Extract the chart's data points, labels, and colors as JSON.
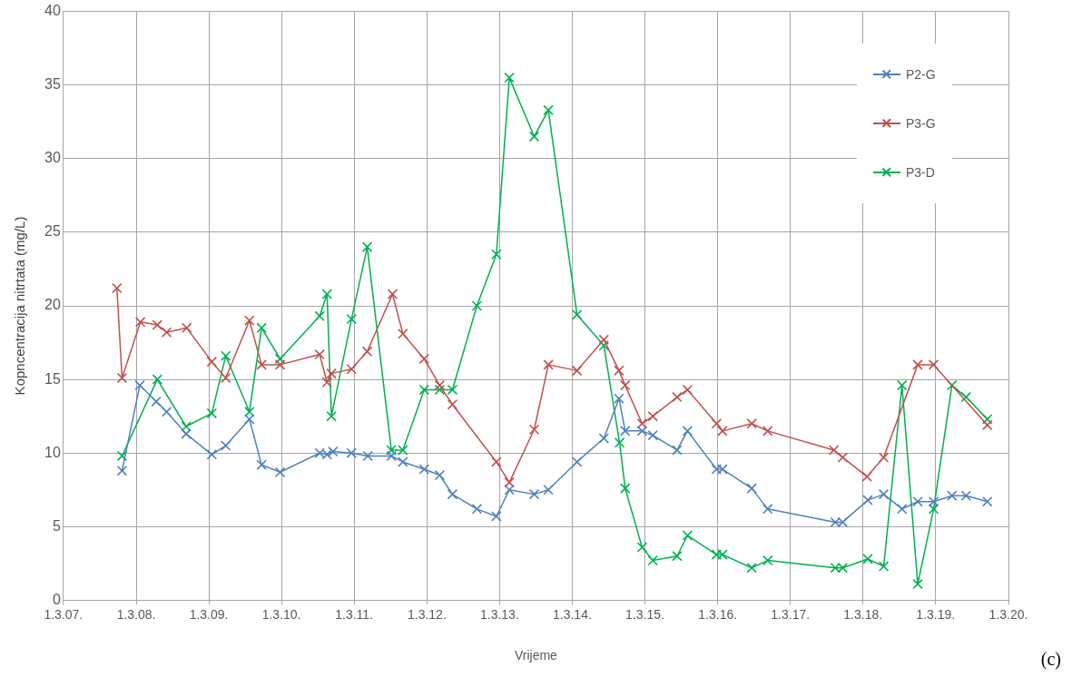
{
  "chart_data": {
    "type": "line",
    "xlabel": "Vrijeme",
    "ylabel": "Kopncentracija nitrtata (mg/L)",
    "annotations": [
      "(c)"
    ],
    "xlim": [
      "2007-03-01",
      "2020-03-01"
    ],
    "xticks": [
      {
        "value": "2007-03-01",
        "label": "1.3.07."
      },
      {
        "value": "2008-03-01",
        "label": "1.3.08."
      },
      {
        "value": "2009-03-01",
        "label": "1.3.09."
      },
      {
        "value": "2010-03-01",
        "label": "1.3.10."
      },
      {
        "value": "2011-03-01",
        "label": "1.3.11."
      },
      {
        "value": "2012-03-01",
        "label": "1.3.12."
      },
      {
        "value": "2013-03-01",
        "label": "1.3.13."
      },
      {
        "value": "2014-03-01",
        "label": "1.3.14."
      },
      {
        "value": "2015-03-01",
        "label": "1.3.15."
      },
      {
        "value": "2016-03-01",
        "label": "1.3.16."
      },
      {
        "value": "2017-03-01",
        "label": "1.3.17."
      },
      {
        "value": "2018-03-01",
        "label": "1.3.18."
      },
      {
        "value": "2019-03-01",
        "label": "1.3.19."
      },
      {
        "value": "2020-03-01",
        "label": "1.3.20."
      }
    ],
    "ylim": [
      0,
      40
    ],
    "yticks": [
      0,
      5,
      10,
      15,
      20,
      25,
      30,
      35,
      40
    ],
    "grid": true,
    "legend": "top right",
    "marker": "cross",
    "line_style": "solid",
    "series": [
      {
        "name": "P2-G",
        "color": "#4f81bd",
        "x": [
          "2007-12-21",
          "2008-03-19",
          "2008-06-10",
          "2008-08-01",
          "2008-11-07",
          "2009-03-16",
          "2009-05-25",
          "2009-09-21",
          "2009-11-21",
          "2010-02-22",
          "2010-09-09",
          "2010-10-16",
          "2010-11-15",
          "2011-02-16",
          "2011-05-09",
          "2011-09-04",
          "2011-11-01",
          "2012-02-16",
          "2012-05-04",
          "2012-07-07",
          "2012-11-07",
          "2013-02-13",
          "2013-04-19",
          "2013-08-22",
          "2013-11-01",
          "2014-03-25",
          "2014-08-07",
          "2014-10-22",
          "2014-11-22",
          "2015-02-15",
          "2015-04-10",
          "2015-08-10",
          "2015-10-01",
          "2016-02-24",
          "2016-03-25",
          "2016-08-19",
          "2016-11-07",
          "2017-10-13",
          "2017-11-19",
          "2018-03-25",
          "2018-06-13",
          "2018-09-13",
          "2018-12-01",
          "2019-02-19",
          "2019-05-22",
          "2019-08-01",
          "2019-11-16"
        ],
        "values": [
          8.8,
          14.6,
          13.5,
          12.8,
          11.3,
          9.9,
          10.5,
          12.3,
          9.2,
          8.7,
          10.0,
          9.9,
          10.1,
          10.0,
          9.8,
          9.8,
          9.4,
          8.9,
          8.5,
          7.2,
          6.2,
          5.7,
          7.5,
          7.2,
          7.5,
          9.4,
          11.0,
          13.7,
          11.5,
          11.5,
          11.2,
          10.2,
          11.5,
          8.9,
          8.9,
          7.6,
          6.2,
          5.3,
          5.3,
          6.8,
          7.2,
          6.2,
          6.7,
          6.7,
          7.1,
          7.1,
          6.7
        ]
      },
      {
        "name": "P3-G",
        "color": "#c0504d",
        "x": [
          "2007-11-25",
          "2007-12-21",
          "2008-03-22",
          "2008-06-15",
          "2008-08-01",
          "2008-11-10",
          "2009-03-16",
          "2009-05-25",
          "2009-09-21",
          "2009-11-21",
          "2010-02-22",
          "2010-09-09",
          "2010-10-16",
          "2010-11-07",
          "2011-02-16",
          "2011-05-06",
          "2011-09-10",
          "2011-11-01",
          "2012-02-16",
          "2012-05-04",
          "2012-07-07",
          "2013-02-13",
          "2013-04-19",
          "2013-08-22",
          "2013-11-01",
          "2014-03-25",
          "2014-08-07",
          "2014-10-22",
          "2014-11-22",
          "2015-02-15",
          "2015-04-10",
          "2015-08-10",
          "2015-10-01",
          "2016-02-24",
          "2016-03-25",
          "2016-08-19",
          "2016-11-07",
          "2017-10-06",
          "2017-11-19",
          "2018-03-21",
          "2018-06-13",
          "2018-12-01",
          "2019-02-19",
          "2019-11-16"
        ],
        "values": [
          21.2,
          15.1,
          18.9,
          18.7,
          18.2,
          18.5,
          16.2,
          15.1,
          19.0,
          16.0,
          16.0,
          16.7,
          14.8,
          15.4,
          15.7,
          16.9,
          20.8,
          18.1,
          16.4,
          14.6,
          13.3,
          9.4,
          8.0,
          11.6,
          16.0,
          15.6,
          17.7,
          15.6,
          14.6,
          12.0,
          12.5,
          13.8,
          14.3,
          12.0,
          11.5,
          12.0,
          11.5,
          10.2,
          9.7,
          8.4,
          9.7,
          16.0,
          16.0,
          11.9
        ]
      },
      {
        "name": "P3-D",
        "color": "#00b050",
        "x": [
          "2007-12-21",
          "2008-06-15",
          "2008-11-07",
          "2009-03-16",
          "2009-05-25",
          "2009-09-21",
          "2009-11-21",
          "2010-02-22",
          "2010-09-09",
          "2010-10-16",
          "2010-11-07",
          "2011-02-16",
          "2011-05-06",
          "2011-09-04",
          "2011-11-01",
          "2012-02-16",
          "2012-05-04",
          "2012-07-07",
          "2012-11-07",
          "2013-02-13",
          "2013-04-19",
          "2013-08-22",
          "2013-11-01",
          "2014-03-25",
          "2014-08-07",
          "2014-10-25",
          "2014-11-22",
          "2015-02-15",
          "2015-04-10",
          "2015-08-10",
          "2015-10-01",
          "2016-02-24",
          "2016-03-25",
          "2016-08-19",
          "2016-11-07",
          "2017-10-13",
          "2017-11-19",
          "2018-03-25",
          "2018-06-13",
          "2018-09-13",
          "2018-12-01",
          "2019-02-19",
          "2019-05-22",
          "2019-08-01",
          "2019-11-16"
        ],
        "values": [
          9.8,
          15.0,
          11.8,
          12.7,
          16.6,
          12.8,
          18.5,
          16.4,
          19.3,
          20.8,
          12.5,
          19.1,
          24.0,
          10.2,
          10.2,
          14.3,
          14.3,
          14.3,
          20.0,
          23.5,
          35.5,
          31.5,
          33.3,
          19.4,
          17.3,
          10.7,
          7.6,
          3.6,
          2.7,
          3.0,
          4.4,
          3.1,
          3.1,
          2.2,
          2.7,
          2.2,
          2.2,
          2.8,
          2.3,
          14.6,
          1.1,
          6.2,
          14.6,
          13.8,
          12.3
        ]
      }
    ]
  }
}
